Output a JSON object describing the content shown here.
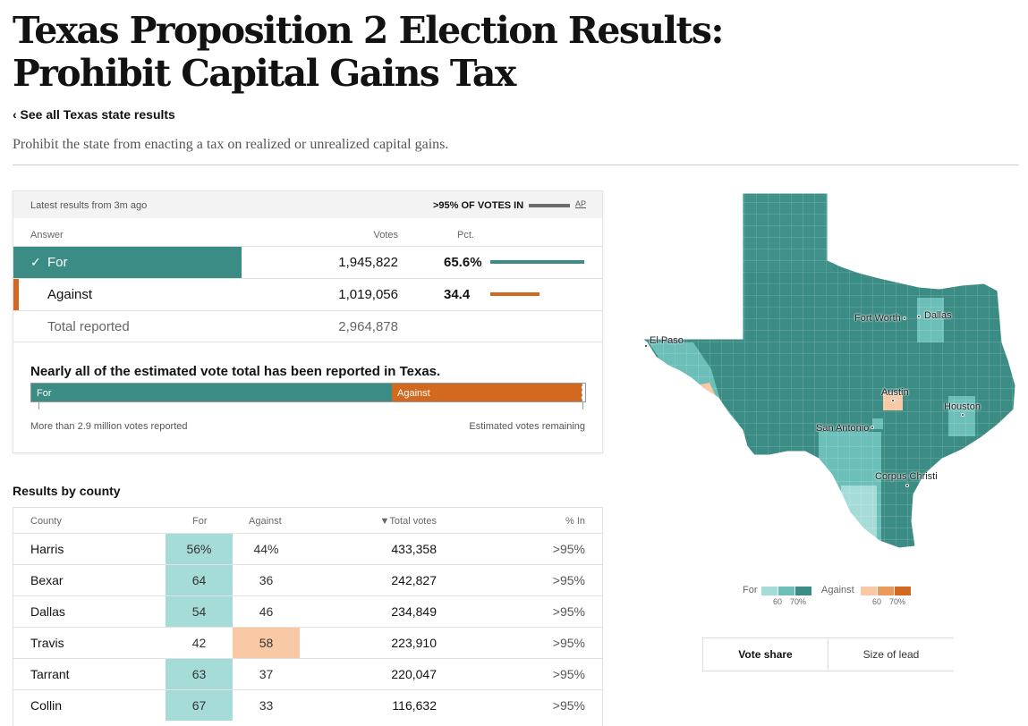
{
  "page": {
    "title": "Texas Proposition 2 Election Results: Prohibit Capital Gains Tax",
    "back_link": "‹ See all Texas state results",
    "description": "Prohibit the state from enacting a tax on realized or unrealized capital gains."
  },
  "results": {
    "latest": "Latest results from 3m ago",
    "pct_in": ">95% OF VOTES IN",
    "source": "AP",
    "col_answer": "Answer",
    "col_votes": "Votes",
    "col_pct": "Pct.",
    "for_label": "For",
    "for_check": "✓",
    "for_votes": "1,945,822",
    "for_pct": "65.6%",
    "for_share": 0.656,
    "against_label": "Against",
    "against_votes": "1,019,056",
    "against_pct": "34.4",
    "against_share": 0.344,
    "total_label": "Total reported",
    "total_votes": "2,964,878"
  },
  "estimate": {
    "title": "Nearly all of the estimated vote total has been reported in Texas.",
    "for_label": "For",
    "against_label": "Against",
    "footer_left": "More than 2.9 million votes reported",
    "footer_right": "Estimated votes remaining"
  },
  "counties": {
    "heading": "Results by county",
    "col_county": "County",
    "col_for": "For",
    "col_against": "Against",
    "col_total": "▼Total votes",
    "col_pct_in": "% In",
    "rows": [
      {
        "name": "Harris",
        "for": "56%",
        "against": "44%",
        "total": "433,358",
        "pct_in": ">95%",
        "winner": "for"
      },
      {
        "name": "Bexar",
        "for": "64",
        "against": "36",
        "total": "242,827",
        "pct_in": ">95%",
        "winner": "for"
      },
      {
        "name": "Dallas",
        "for": "54",
        "against": "46",
        "total": "234,849",
        "pct_in": ">95%",
        "winner": "for"
      },
      {
        "name": "Travis",
        "for": "42",
        "against": "58",
        "total": "223,910",
        "pct_in": ">95%",
        "winner": "against"
      },
      {
        "name": "Tarrant",
        "for": "63",
        "against": "37",
        "total": "220,047",
        "pct_in": ">95%",
        "winner": "for"
      },
      {
        "name": "Collin",
        "for": "67",
        "against": "33",
        "total": "116,632",
        "pct_in": ">95%",
        "winner": "for"
      }
    ]
  },
  "map": {
    "cities": {
      "el_paso": "El Paso",
      "fort_worth": "Fort Worth",
      "dallas": "Dallas",
      "austin": "Austin",
      "houston": "Houston",
      "san_antonio": "San Antonio",
      "corpus_christi": "Corpus Christi"
    }
  },
  "legend": {
    "for_label": "For",
    "against_label": "Against",
    "tick_60": "60",
    "tick_70": "70%"
  },
  "toggle": {
    "vote_share": "Vote share",
    "size_of_lead": "Size of lead"
  },
  "colors": {
    "for_dark": "#3a8c84",
    "for_mid": "#6bbfb8",
    "for_light": "#a5dcd8",
    "against_dark": "#d3691f",
    "against_mid": "#ec9a5c",
    "against_light": "#f8c9a4"
  }
}
